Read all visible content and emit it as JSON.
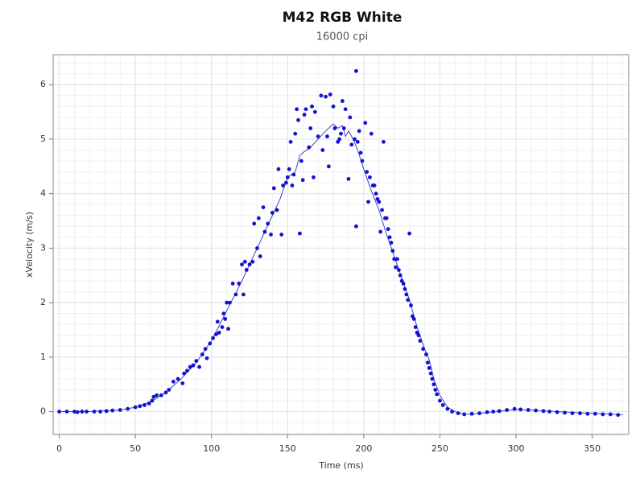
{
  "chart_data": {
    "type": "scatter",
    "title": "M42 RGB White",
    "subtitle": "16000 cpi",
    "xlabel": "Time (ms)",
    "ylabel": "xVelocity (m/s)",
    "color": "#1212d0",
    "line_color": "#4040c8",
    "xlim": [
      -4,
      374
    ],
    "ylim": [
      -0.42,
      6.55
    ],
    "xticks": [
      0,
      50,
      100,
      150,
      200,
      250,
      300,
      350
    ],
    "yticks": [
      0,
      1,
      2,
      3,
      4,
      5,
      6
    ],
    "grid": true,
    "minor_grid": true,
    "x": [
      0,
      5,
      10,
      12,
      15,
      18,
      23,
      27,
      31,
      35,
      40,
      45,
      50,
      53,
      56,
      59,
      61,
      62,
      64,
      67,
      70,
      72,
      75,
      78,
      81,
      82,
      84,
      86,
      88,
      90,
      92,
      94,
      96,
      97,
      99,
      101,
      103,
      104,
      105,
      107,
      108,
      109,
      110,
      111,
      112,
      114,
      116,
      118,
      120,
      121,
      122,
      123,
      125,
      127,
      128,
      130,
      131,
      132,
      134,
      135,
      137,
      139,
      140,
      141,
      143,
      144,
      146,
      147,
      149,
      150,
      151,
      152,
      153,
      154,
      155,
      156,
      157,
      158,
      159,
      160,
      161,
      162,
      164,
      165,
      166,
      167,
      168,
      170,
      172,
      173,
      175,
      176,
      177,
      178,
      180,
      181,
      183,
      184,
      185,
      186,
      187,
      188,
      190,
      191,
      192,
      194,
      195,
      195,
      196,
      197,
      198,
      199,
      201,
      202,
      203,
      204,
      205,
      206,
      207,
      208,
      209,
      210,
      211,
      212,
      213,
      214,
      215,
      216,
      217,
      218,
      219,
      220,
      221,
      222,
      223,
      224,
      225,
      226,
      227,
      228,
      229,
      230,
      231,
      232,
      233,
      234,
      235,
      236,
      237,
      239,
      241,
      242,
      243,
      244,
      245,
      246,
      247,
      248,
      250,
      252,
      255,
      258,
      262,
      266,
      271,
      276,
      281,
      285,
      289,
      294,
      299,
      303,
      308,
      313,
      318,
      322,
      327,
      332,
      337,
      342,
      347,
      352,
      357,
      362,
      367
    ],
    "values": [
      0,
      0,
      0,
      -0.01,
      0,
      0,
      0,
      0,
      0.01,
      0.02,
      0.03,
      0.05,
      0.08,
      0.1,
      0.12,
      0.15,
      0.2,
      0.27,
      0.3,
      0.3,
      0.35,
      0.4,
      0.55,
      0.6,
      0.52,
      0.7,
      0.75,
      0.82,
      0.85,
      0.93,
      0.82,
      1.05,
      1.15,
      0.98,
      1.25,
      1.35,
      1.42,
      1.65,
      1.45,
      1.55,
      1.8,
      1.7,
      2.0,
      1.52,
      2.0,
      2.35,
      2.15,
      2.35,
      2.7,
      2.15,
      2.75,
      2.6,
      2.7,
      2.75,
      3.45,
      3.0,
      3.55,
      2.85,
      3.75,
      3.3,
      3.45,
      3.25,
      3.65,
      4.1,
      3.7,
      4.45,
      3.25,
      4.15,
      4.2,
      4.3,
      4.45,
      4.95,
      4.15,
      4.35,
      5.1,
      5.55,
      5.35,
      3.27,
      4.6,
      4.25,
      5.45,
      5.55,
      4.85,
      5.2,
      5.6,
      4.3,
      5.5,
      5.05,
      5.8,
      4.8,
      5.78,
      5.05,
      4.5,
      5.82,
      5.6,
      5.2,
      4.95,
      5.0,
      5.1,
      5.7,
      5.2,
      5.55,
      4.27,
      5.4,
      4.9,
      5.0,
      6.25,
      3.4,
      4.95,
      5.15,
      4.75,
      4.6,
      5.3,
      4.4,
      3.85,
      4.3,
      5.1,
      4.15,
      4.15,
      4.0,
      3.9,
      3.85,
      3.3,
      3.7,
      4.95,
      3.55,
      3.55,
      3.35,
      3.2,
      3.1,
      2.95,
      2.8,
      2.65,
      2.8,
      2.6,
      2.5,
      2.4,
      2.35,
      2.25,
      2.15,
      2.05,
      3.27,
      1.95,
      1.75,
      1.7,
      1.55,
      1.45,
      1.4,
      1.3,
      1.15,
      1.05,
      0.9,
      0.8,
      0.7,
      0.6,
      0.5,
      0.4,
      0.32,
      0.2,
      0.12,
      0.05,
      0,
      -0.03,
      -0.05,
      -0.04,
      -0.03,
      -0.01,
      0,
      0.01,
      0.03,
      0.05,
      0.04,
      0.03,
      0.02,
      0.01,
      0,
      -0.01,
      -0.02,
      -0.03,
      -0.03,
      -0.04,
      -0.04,
      -0.05,
      -0.05,
      -0.06
    ],
    "line": {
      "x": [
        0,
        20,
        40,
        50,
        60,
        70,
        80,
        90,
        100,
        110,
        120,
        130,
        140,
        145,
        150,
        155,
        158,
        160,
        165,
        170,
        175,
        180,
        183,
        186,
        188,
        190,
        193,
        196,
        200,
        205,
        210,
        215,
        220,
        225,
        230,
        235,
        240,
        243,
        246,
        250,
        255,
        260,
        265,
        270,
        280,
        290,
        300,
        310,
        320,
        340,
        360,
        370
      ],
      "values": [
        0,
        0,
        0.03,
        0.08,
        0.18,
        0.35,
        0.6,
        0.9,
        1.3,
        1.85,
        2.4,
        3.0,
        3.6,
        3.9,
        4.3,
        4.4,
        4.7,
        4.75,
        4.85,
        5.0,
        5.15,
        5.28,
        5.2,
        5.25,
        5.05,
        5.15,
        5.0,
        4.8,
        4.45,
        4.05,
        3.7,
        3.25,
        2.85,
        2.45,
        2.05,
        1.55,
        1.15,
        0.95,
        0.6,
        0.3,
        0.08,
        0,
        -0.04,
        -0.05,
        -0.02,
        0.01,
        0.04,
        0.03,
        0.01,
        -0.02,
        -0.04,
        -0.06
      ]
    }
  }
}
